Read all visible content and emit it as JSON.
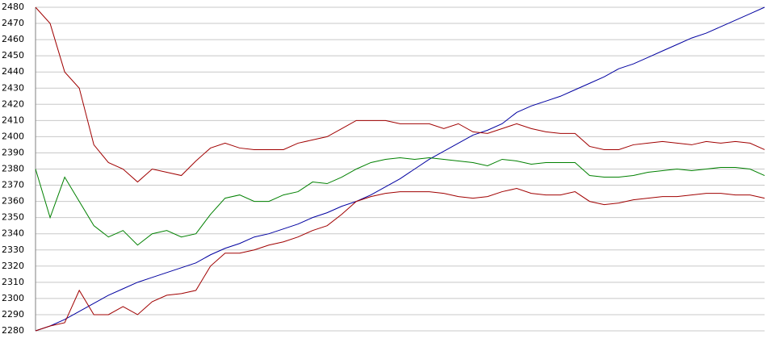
{
  "chart_data": {
    "type": "line",
    "ylim": [
      2280,
      2480
    ],
    "yticks": [
      2280,
      2290,
      2300,
      2310,
      2320,
      2330,
      2340,
      2350,
      2360,
      2370,
      2380,
      2390,
      2400,
      2410,
      2420,
      2430,
      2440,
      2450,
      2460,
      2470,
      2480
    ],
    "grid": true,
    "series": [
      {
        "color": "#0000a0",
        "values": [
          2280,
          2283,
          2287,
          2292,
          2297,
          2302,
          2306,
          2310,
          2313,
          2316,
          2319,
          2322,
          2327,
          2331,
          2334,
          2338,
          2340,
          2343,
          2346,
          2350,
          2353,
          2357,
          2360,
          2364,
          2369,
          2374,
          2380,
          2386,
          2391,
          2396,
          2401,
          2404,
          2408,
          2415,
          2419,
          2422,
          2425,
          2429,
          2433,
          2437,
          2442,
          2445,
          2449,
          2453,
          2457,
          2461,
          2464,
          2468,
          2472,
          2476,
          2480
        ]
      },
      {
        "color": "#008000",
        "values": [
          2380,
          2350,
          2375,
          2360,
          2345,
          2338,
          2342,
          2333,
          2340,
          2342,
          2338,
          2340,
          2352,
          2362,
          2364,
          2360,
          2360,
          2364,
          2366,
          2372,
          2371,
          2375,
          2380,
          2384,
          2386,
          2387,
          2386,
          2387,
          2386,
          2385,
          2384,
          2382,
          2386,
          2385,
          2383,
          2384,
          2384,
          2384,
          2376,
          2375,
          2375,
          2376,
          2378,
          2379,
          2380,
          2379,
          2380,
          2381,
          2381,
          2380,
          2376
        ]
      },
      {
        "color": "#a00000",
        "values": [
          2480,
          2470,
          2440,
          2430,
          2395,
          2384,
          2380,
          2372,
          2380,
          2378,
          2376,
          2385,
          2393,
          2396,
          2393,
          2392,
          2392,
          2392,
          2396,
          2398,
          2400,
          2405,
          2410,
          2410,
          2410,
          2408,
          2408,
          2408,
          2405,
          2408,
          2403,
          2402,
          2405,
          2408,
          2405,
          2403,
          2402,
          2402,
          2394,
          2392,
          2392,
          2395,
          2396,
          2397,
          2396,
          2395,
          2397,
          2396,
          2397,
          2396,
          2392
        ]
      },
      {
        "color": "#a00000",
        "values": [
          2280,
          2283,
          2285,
          2305,
          2290,
          2290,
          2295,
          2290,
          2298,
          2302,
          2303,
          2305,
          2320,
          2328,
          2328,
          2330,
          2333,
          2335,
          2338,
          2342,
          2345,
          2352,
          2360,
          2363,
          2365,
          2366,
          2366,
          2366,
          2365,
          2363,
          2362,
          2363,
          2366,
          2368,
          2365,
          2364,
          2364,
          2366,
          2360,
          2358,
          2359,
          2361,
          2362,
          2363,
          2363,
          2364,
          2365,
          2365,
          2364,
          2364,
          2362
        ]
      }
    ]
  }
}
